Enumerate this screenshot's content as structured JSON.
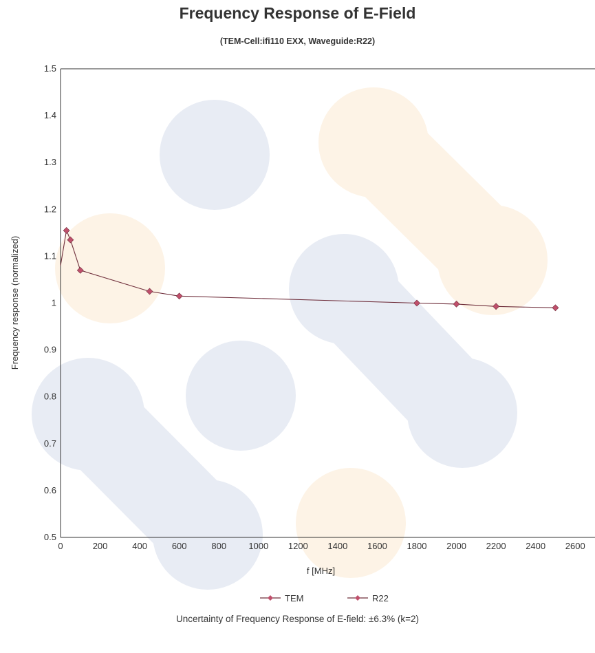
{
  "footnote": "Uncertainty of Frequency Response of E-field: ±6.3% (k=2)",
  "colors": {
    "series": "#c0506c",
    "line": "#6e2d3a",
    "axis": "#333333",
    "watermark_blue": "#e8ecf4",
    "watermark_orange": "#fdf3e6"
  },
  "chart_data": {
    "type": "line",
    "title": "Frequency Response of E-Field",
    "subtitle": "(TEM-Cell:ifi110 EXX, Waveguide:R22)",
    "xlabel": "f [MHz]",
    "ylabel": "Frequency response (normalized)",
    "xlim": [
      0,
      2700
    ],
    "ylim": [
      0.5,
      1.5
    ],
    "xticks": [
      0,
      200,
      400,
      600,
      800,
      1000,
      1200,
      1400,
      1600,
      1800,
      2000,
      2200,
      2400,
      2600
    ],
    "yticks": [
      0.5,
      0.6,
      0.7,
      0.8,
      0.9,
      1,
      1.1,
      1.2,
      1.3,
      1.4,
      1.5
    ],
    "ytick_labels": [
      "0.5",
      "0.6",
      "0.7",
      "0.8",
      "0.9",
      "1",
      "1.1",
      "1.2",
      "1.3",
      "1.4",
      "1.5"
    ],
    "grid": false,
    "legend_position": "bottom",
    "series": [
      {
        "name": "TEM",
        "x": [
          30,
          50,
          100,
          450,
          600
        ],
        "y": [
          1.155,
          1.135,
          1.07,
          1.025,
          1.015
        ]
      },
      {
        "name": "R22",
        "x": [
          1800,
          2000,
          2200,
          2500
        ],
        "y": [
          1.0,
          0.998,
          0.993,
          0.99
        ]
      }
    ]
  }
}
